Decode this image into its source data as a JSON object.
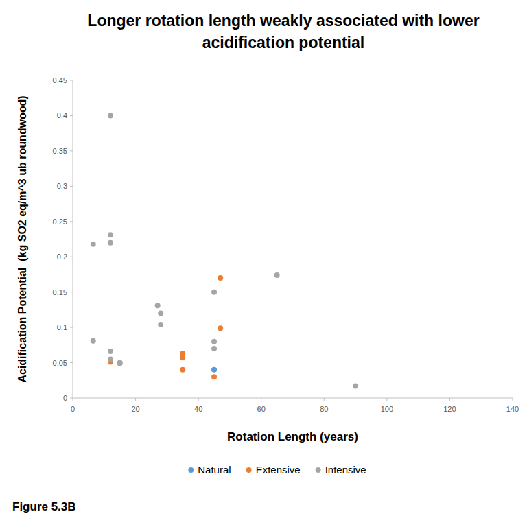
{
  "chart_data": {
    "type": "scatter",
    "title": "Longer rotation length weakly associated with lower acidification potential",
    "x_label": "Rotation Length (years)",
    "y_label": "Acidification Potential  (kg SO2 eq/m^3 ub roundwood)",
    "caption": "Figure 5.3B",
    "xlim": [
      0,
      140
    ],
    "xticks": [
      0,
      20,
      40,
      60,
      80,
      100,
      120,
      140
    ],
    "ylim": [
      0,
      0.45
    ],
    "yticks": [
      0,
      0.05,
      0.1,
      0.15,
      0.2,
      0.25,
      0.3,
      0.35,
      0.4,
      0.45
    ],
    "grid": false,
    "legend": "bottom",
    "marker": "circle",
    "series": [
      {
        "name": "Natural",
        "color": "#5b9bd5",
        "x": [
          45
        ],
        "values": [
          0.04
        ]
      },
      {
        "name": "Extensive",
        "color": "#ed7d31",
        "x": [
          12,
          35,
          35,
          35,
          45,
          47,
          47
        ],
        "values": [
          0.051,
          0.063,
          0.057,
          0.04,
          0.03,
          0.17,
          0.099
        ]
      },
      {
        "name": "Intensive",
        "color": "#a5a5a5",
        "x": [
          12,
          6.5,
          12,
          12,
          6.5,
          12,
          12,
          15,
          15,
          27,
          28,
          28,
          45,
          45,
          45,
          65,
          90
        ],
        "values": [
          0.4,
          0.218,
          0.231,
          0.22,
          0.081,
          0.066,
          0.055,
          0.05,
          0.049,
          0.131,
          0.12,
          0.104,
          0.15,
          0.08,
          0.07,
          0.174,
          0.017
        ]
      }
    ]
  }
}
